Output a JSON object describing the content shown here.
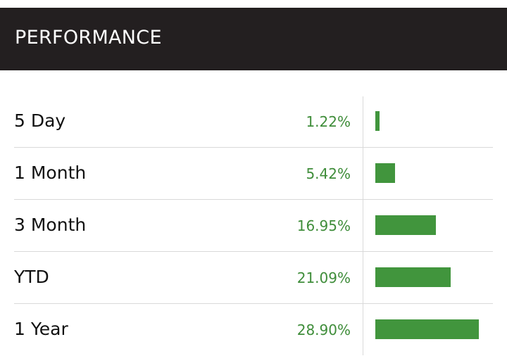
{
  "header": {
    "title": "PERFORMANCE"
  },
  "colors": {
    "header_bg": "#231f20",
    "positive": "#41953d",
    "divider": "#d9d9d9"
  },
  "rows": [
    {
      "label": "5 Day",
      "value": "1.22%",
      "percent": 1.22
    },
    {
      "label": "1 Month",
      "value": "5.42%",
      "percent": 5.42
    },
    {
      "label": "3 Month",
      "value": "16.95%",
      "percent": 16.95
    },
    {
      "label": "YTD",
      "value": "21.09%",
      "percent": 21.09
    },
    {
      "label": "1 Year",
      "value": "28.90%",
      "percent": 28.9
    }
  ]
}
